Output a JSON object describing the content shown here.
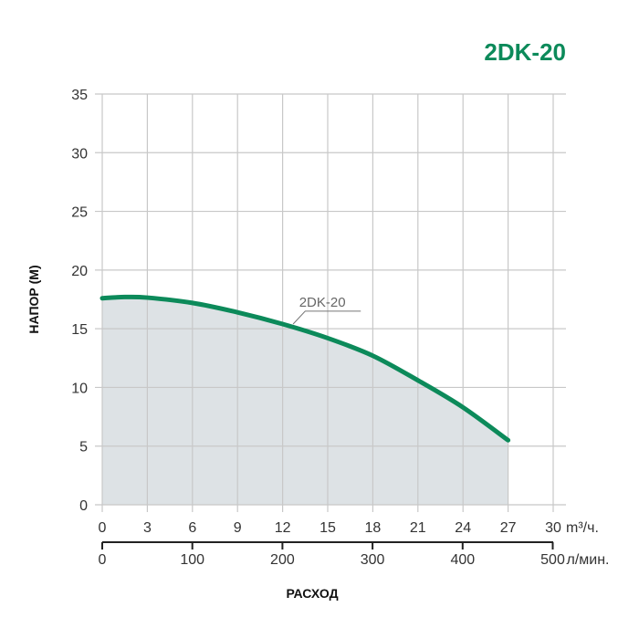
{
  "title": "2DK-20",
  "chart_data": {
    "type": "area",
    "title": "2DK-20",
    "xlabel": "РАСХОД",
    "ylabel": "НАПОР (М)",
    "x_unit": "m³/ч.",
    "x2_unit": "л/мин.",
    "xlim": [
      0,
      30
    ],
    "ylim": [
      0,
      35
    ],
    "x_ticks": [
      0,
      3,
      6,
      9,
      12,
      15,
      18,
      21,
      24,
      27,
      30
    ],
    "x2_ticks": [
      0,
      100,
      200,
      300,
      400,
      500
    ],
    "y_ticks": [
      0,
      5,
      10,
      15,
      20,
      25,
      30,
      35
    ],
    "grid": true,
    "series": [
      {
        "name": "2DK-20",
        "color": "#0c8a5a",
        "fill": "#dde2e5",
        "x": [
          0,
          1.5,
          3,
          6,
          9,
          12,
          15,
          18,
          21,
          24,
          27
        ],
        "y": [
          17.6,
          17.7,
          17.65,
          17.2,
          16.4,
          15.4,
          14.2,
          12.7,
          10.6,
          8.3,
          5.5
        ]
      }
    ],
    "annotations": [
      {
        "text": "2DK-20",
        "x": 13,
        "y": 15.2
      }
    ]
  }
}
